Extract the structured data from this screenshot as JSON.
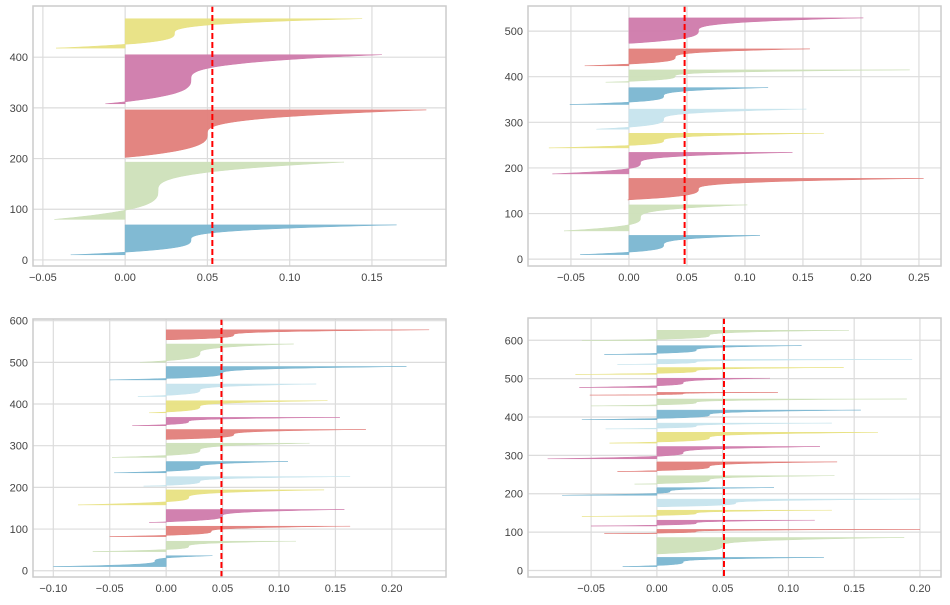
{
  "chart_data": [
    {
      "type": "area",
      "title": "",
      "xlabel": "",
      "ylabel": "",
      "xlim": [
        -0.056,
        0.195
      ],
      "ylim": [
        -12,
        501
      ],
      "xticks": [
        -0.05,
        0.0,
        0.05,
        0.1,
        0.15
      ],
      "xtick_labels": [
        "−0.05",
        "0.00",
        "0.05",
        "0.10",
        "0.15"
      ],
      "yticks": [
        0,
        100,
        200,
        300,
        400
      ],
      "ytick_labels": [
        "0",
        "100",
        "200",
        "300",
        "400"
      ],
      "grid": true,
      "average_line": 0.053,
      "clusters": [
        {
          "color": "blue",
          "y": [
            10,
            69
          ],
          "min": -0.033,
          "median": 0.04,
          "max": 0.165
        },
        {
          "color": "green",
          "y": [
            80,
            193
          ],
          "min": -0.043,
          "median": 0.02,
          "max": 0.133
        },
        {
          "color": "red",
          "y": [
            202,
            296
          ],
          "min": 0.0,
          "median": 0.05,
          "max": 0.183
        },
        {
          "color": "magenta",
          "y": [
            308,
            405
          ],
          "min": -0.012,
          "median": 0.04,
          "max": 0.156
        },
        {
          "color": "yellow",
          "y": [
            418,
            476
          ],
          "min": -0.042,
          "median": 0.03,
          "max": 0.144
        }
      ]
    },
    {
      "type": "area",
      "title": "",
      "xlabel": "",
      "ylabel": "",
      "xlim": [
        -0.087,
        0.269
      ],
      "ylim": [
        -15,
        555
      ],
      "xticks": [
        -0.05,
        0.0,
        0.05,
        0.1,
        0.15,
        0.2,
        0.25
      ],
      "xtick_labels": [
        "−0.05",
        "0.00",
        "0.05",
        "0.10",
        "0.15",
        "0.20",
        "0.25"
      ],
      "yticks": [
        0,
        100,
        200,
        300,
        400,
        500
      ],
      "ytick_labels": [
        "0",
        "100",
        "200",
        "300",
        "400",
        "500"
      ],
      "grid": true,
      "average_line": 0.048,
      "clusters": [
        {
          "color": "blue",
          "y": [
            10,
            52
          ],
          "min": -0.042,
          "median": 0.03,
          "max": 0.113
        },
        {
          "color": "green",
          "y": [
            62,
            119
          ],
          "min": -0.056,
          "median": 0.01,
          "max": 0.102
        },
        {
          "color": "red",
          "y": [
            130,
            177
          ],
          "min": -0.001,
          "median": 0.06,
          "max": 0.254
        },
        {
          "color": "magenta",
          "y": [
            187,
            234
          ],
          "min": -0.066,
          "median": 0.01,
          "max": 0.141
        },
        {
          "color": "yellow",
          "y": [
            244,
            276
          ],
          "min": -0.069,
          "median": 0.03,
          "max": 0.168
        },
        {
          "color": "lightblue",
          "y": [
            285,
            329
          ],
          "min": -0.028,
          "median": 0.03,
          "max": 0.153
        },
        {
          "color": "blue",
          "y": [
            339,
            376
          ],
          "min": -0.051,
          "median": 0.03,
          "max": 0.12
        },
        {
          "color": "green",
          "y": [
            388,
            415
          ],
          "min": -0.02,
          "median": 0.04,
          "max": 0.242
        },
        {
          "color": "red",
          "y": [
            424,
            461
          ],
          "min": -0.038,
          "median": 0.04,
          "max": 0.156
        },
        {
          "color": "magenta",
          "y": [
            473,
            529
          ],
          "min": 0.0,
          "median": 0.06,
          "max": 0.202
        }
      ]
    },
    {
      "type": "area",
      "title": "",
      "xlabel": "",
      "ylabel": "",
      "xlim": [
        -0.118,
        0.248
      ],
      "ylim": [
        -15,
        604
      ],
      "xticks": [
        -0.1,
        -0.05,
        0.0,
        0.05,
        0.1,
        0.15,
        0.2
      ],
      "xtick_labels": [
        "−0.10",
        "−0.05",
        "0.00",
        "0.05",
        "0.10",
        "0.15",
        "0.20"
      ],
      "yticks": [
        0,
        100,
        200,
        300,
        400,
        500,
        600
      ],
      "ytick_labels": [
        "0",
        "100",
        "200",
        "300",
        "400",
        "500",
        "600"
      ],
      "grid": true,
      "average_line": 0.049,
      "clusters": [
        {
          "color": "blue",
          "y": [
            10,
            36
          ],
          "min": -0.1,
          "median": -0.01,
          "max": 0.041
        },
        {
          "color": "green",
          "y": [
            46,
            71
          ],
          "min": -0.065,
          "median": 0.02,
          "max": 0.115
        },
        {
          "color": "red",
          "y": [
            82,
            107
          ],
          "min": -0.05,
          "median": 0.04,
          "max": 0.163
        },
        {
          "color": "magenta",
          "y": [
            116,
            147
          ],
          "min": -0.015,
          "median": 0.05,
          "max": 0.158
        },
        {
          "color": "yellow",
          "y": [
            158,
            194
          ],
          "min": -0.078,
          "median": 0.02,
          "max": 0.14
        },
        {
          "color": "lightblue",
          "y": [
            203,
            226
          ],
          "min": -0.02,
          "median": 0.03,
          "max": 0.163
        },
        {
          "color": "blue",
          "y": [
            235,
            262
          ],
          "min": -0.046,
          "median": 0.03,
          "max": 0.108
        },
        {
          "color": "green",
          "y": [
            272,
            306
          ],
          "min": -0.048,
          "median": 0.03,
          "max": 0.127
        },
        {
          "color": "red",
          "y": [
            315,
            339
          ],
          "min": 0.0,
          "median": 0.06,
          "max": 0.177
        },
        {
          "color": "magenta",
          "y": [
            348,
            368
          ],
          "min": -0.03,
          "median": 0.02,
          "max": 0.154
        },
        {
          "color": "yellow",
          "y": [
            379,
            408
          ],
          "min": -0.015,
          "median": 0.03,
          "max": 0.143
        },
        {
          "color": "lightblue",
          "y": [
            418,
            448
          ],
          "min": -0.025,
          "median": 0.03,
          "max": 0.133
        },
        {
          "color": "blue",
          "y": [
            458,
            490
          ],
          "min": -0.05,
          "median": 0.05,
          "max": 0.213
        },
        {
          "color": "green",
          "y": [
            500,
            544
          ],
          "min": -0.023,
          "median": 0.03,
          "max": 0.113
        },
        {
          "color": "red",
          "y": [
            554,
            578
          ],
          "min": 0.0,
          "median": 0.06,
          "max": 0.233
        }
      ]
    },
    {
      "type": "area",
      "title": "",
      "xlabel": "",
      "ylabel": "",
      "xlim": [
        -0.098,
        0.216
      ],
      "ylim": [
        -17,
        658
      ],
      "xticks": [
        -0.05,
        0.0,
        0.05,
        0.1,
        0.15,
        0.2
      ],
      "xtick_labels": [
        "−0.05",
        "0.00",
        "0.05",
        "0.10",
        "0.15",
        "0.20"
      ],
      "yticks": [
        0,
        100,
        200,
        300,
        400,
        500,
        600
      ],
      "ytick_labels": [
        "0",
        "100",
        "200",
        "300",
        "400",
        "500",
        "600"
      ],
      "grid": true,
      "average_line": 0.051,
      "clusters": [
        {
          "color": "blue",
          "y": [
            10,
            34
          ],
          "min": -0.026,
          "median": 0.02,
          "max": 0.127
        },
        {
          "color": "green",
          "y": [
            43,
            86
          ],
          "min": 0.0,
          "median": 0.05,
          "max": 0.188
        },
        {
          "color": "red",
          "y": [
            96,
            107
          ],
          "min": -0.04,
          "median": 0.03,
          "max": 0.2
        },
        {
          "color": "magenta",
          "y": [
            116,
            131
          ],
          "min": -0.05,
          "median": 0.03,
          "max": 0.12
        },
        {
          "color": "yellow",
          "y": [
            141,
            157
          ],
          "min": -0.057,
          "median": 0.03,
          "max": 0.133
        },
        {
          "color": "lightblue",
          "y": [
            166,
            186
          ],
          "min": 0.0,
          "median": 0.06,
          "max": 0.2
        },
        {
          "color": "blue",
          "y": [
            196,
            216
          ],
          "min": -0.072,
          "median": 0.01,
          "max": 0.089
        },
        {
          "color": "green",
          "y": [
            225,
            247
          ],
          "min": -0.017,
          "median": 0.04,
          "max": 0.135
        },
        {
          "color": "red",
          "y": [
            258,
            283
          ],
          "min": -0.03,
          "median": 0.04,
          "max": 0.137
        },
        {
          "color": "magenta",
          "y": [
            291,
            323
          ],
          "min": -0.083,
          "median": 0.02,
          "max": 0.124
        },
        {
          "color": "yellow",
          "y": [
            332,
            360
          ],
          "min": -0.036,
          "median": 0.04,
          "max": 0.168
        },
        {
          "color": "lightblue",
          "y": [
            369,
            384
          ],
          "min": -0.039,
          "median": 0.03,
          "max": 0.133
        },
        {
          "color": "blue",
          "y": [
            393,
            418
          ],
          "min": -0.057,
          "median": 0.04,
          "max": 0.155
        },
        {
          "color": "green",
          "y": [
            429,
            447
          ],
          "min": -0.05,
          "median": 0.03,
          "max": 0.19
        },
        {
          "color": "red",
          "y": [
            457,
            464
          ],
          "min": -0.051,
          "median": 0.02,
          "max": 0.092
        },
        {
          "color": "magenta",
          "y": [
            477,
            501
          ],
          "min": -0.059,
          "median": 0.02,
          "max": 0.086
        },
        {
          "color": "yellow",
          "y": [
            511,
            529
          ],
          "min": -0.062,
          "median": 0.03,
          "max": 0.142
        },
        {
          "color": "lightblue",
          "y": [
            537,
            550
          ],
          "min": -0.03,
          "median": 0.03,
          "max": 0.194
        },
        {
          "color": "blue",
          "y": [
            563,
            586
          ],
          "min": -0.04,
          "median": 0.03,
          "max": 0.11
        },
        {
          "color": "green",
          "y": [
            599,
            626
          ],
          "min": -0.057,
          "median": 0.04,
          "max": 0.146
        }
      ]
    }
  ],
  "colors": {
    "blue": "#7ab6d1",
    "green": "#cde0b9",
    "red": "#e27e7a",
    "magenta": "#cf7aab",
    "yellow": "#e8e282",
    "lightblue": "#c6e4ed",
    "average_line": "#ff0000",
    "grid": "#dcdcdc",
    "frame": "#cccccc"
  }
}
